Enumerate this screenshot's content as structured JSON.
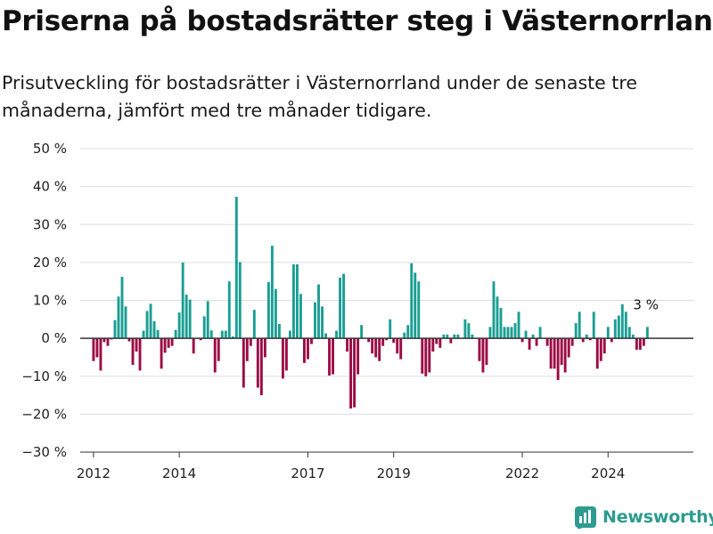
{
  "title": "Priserna på bostadsrätter steg i Västernorrland",
  "subtitle": "Prisutveckling för bostadsrätter i Västernorrland under de senaste tre månaderna, jämfört med tre månader tidigare.",
  "brand": {
    "name": "Newsworthy",
    "icon": "newsworthy-logo-icon"
  },
  "colors": {
    "positive": "#1a9e93",
    "negative": "#9b0a45",
    "grid": "#dddddd",
    "baseline": "#333333"
  },
  "chart_data": {
    "type": "bar",
    "title": "",
    "xlabel": "",
    "ylabel": "",
    "ylim": [
      -30,
      50
    ],
    "yticks": [
      50,
      40,
      30,
      20,
      10,
      0,
      -10,
      -20,
      -30
    ],
    "ytick_labels": [
      "50 %",
      "40 %",
      "30 %",
      "20 %",
      "10 %",
      "0 %",
      "−10 %",
      "−20 %",
      "−30 %"
    ],
    "xtick_labels": [
      {
        "label": "2012",
        "t": 2012.0
      },
      {
        "label": "2014",
        "t": 2014.0
      },
      {
        "label": "2017",
        "t": 2017.0
      },
      {
        "label": "2019",
        "t": 2019.0
      },
      {
        "label": "2022",
        "t": 2022.0
      },
      {
        "label": "2024",
        "t": 2024.0
      }
    ],
    "grid": true,
    "start": "2012-01",
    "frequency": "monthly",
    "values": [
      -6,
      -5,
      -8.5,
      -1,
      -2,
      -0.3,
      4.8,
      11,
      16.2,
      8.4,
      -0.8,
      -7,
      -3.5,
      -8.5,
      2,
      7.2,
      9.1,
      4.5,
      2.2,
      -8,
      -3.8,
      -2.5,
      -2,
      2.2,
      6.8,
      20,
      11.5,
      10.2,
      -4,
      0,
      -0.5,
      5.8,
      9.8,
      2.1,
      -9,
      -6,
      2,
      2,
      15,
      0.5,
      37.3,
      20.1,
      -13,
      -6,
      -2,
      7.5,
      -13,
      -15,
      -5,
      14.8,
      24.4,
      13,
      3.8,
      -10.6,
      -8.5,
      2,
      19.5,
      19.5,
      11.7,
      -6.5,
      -5.5,
      -1.5,
      9.5,
      14.2,
      8.4,
      1.3,
      -9.8,
      -9.5,
      2,
      16,
      17,
      -3.5,
      -18.5,
      -18.2,
      -9.5,
      3.5,
      0,
      -1,
      -4,
      -5,
      -6,
      -2,
      -0.5,
      5,
      -1.2,
      -4,
      -5.5,
      1.5,
      3.5,
      19.8,
      17.3,
      15,
      -9.3,
      -10,
      -9,
      -3.5,
      -1.5,
      -2.5,
      1,
      1,
      -1.3,
      1,
      1,
      0,
      5,
      4,
      1,
      0,
      -6,
      -9,
      -7,
      3,
      15,
      11,
      8,
      3,
      3,
      3,
      4,
      7,
      -1,
      2,
      -3,
      1,
      -2,
      3,
      0,
      -2,
      -8,
      -8,
      -11,
      -7,
      -9,
      -5,
      -2,
      4,
      7,
      -1,
      1,
      -0.5,
      7,
      -8,
      -6,
      -4,
      3,
      -1,
      5,
      6,
      9,
      7,
      3,
      1,
      -3,
      -3,
      -2,
      3
    ]
  },
  "annotation": {
    "label": "3 %"
  }
}
